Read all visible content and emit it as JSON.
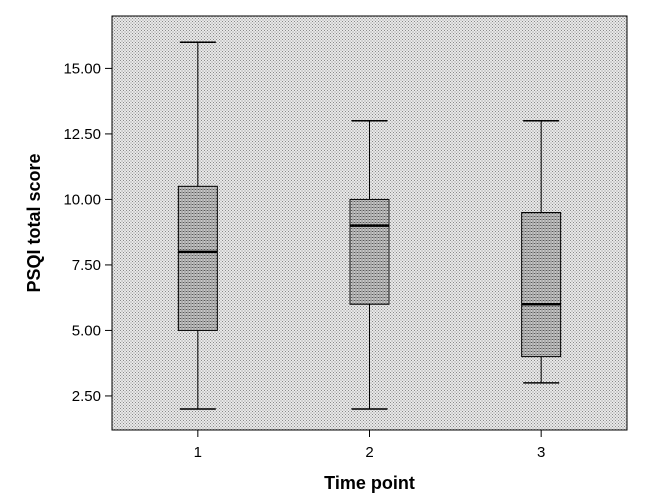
{
  "chart_data": {
    "type": "boxplot",
    "title": "",
    "xlabel": "Time point",
    "ylabel": "PSQI total score",
    "ylim": [
      1.2,
      17
    ],
    "y_ticks": [
      2.5,
      5.0,
      7.5,
      10.0,
      12.5,
      15.0
    ],
    "y_tick_labels": [
      "2.50",
      "5.00",
      "7.50",
      "10.00",
      "12.50",
      "15.00"
    ],
    "categories": [
      "1",
      "2",
      "3"
    ],
    "boxes": [
      {
        "category": "1",
        "min": 2,
        "q1": 5,
        "median": 8,
        "q3": 10.5,
        "max": 16
      },
      {
        "category": "2",
        "min": 2,
        "q1": 6,
        "median": 9,
        "q3": 10,
        "max": 13
      },
      {
        "category": "3",
        "min": 3,
        "q1": 4,
        "median": 6,
        "q3": 9.5,
        "max": 13
      }
    ],
    "grid": false,
    "colors": {
      "plot_background": "#e6e6e6",
      "box_fill": "#bdbdbd",
      "line": "#000000"
    }
  }
}
